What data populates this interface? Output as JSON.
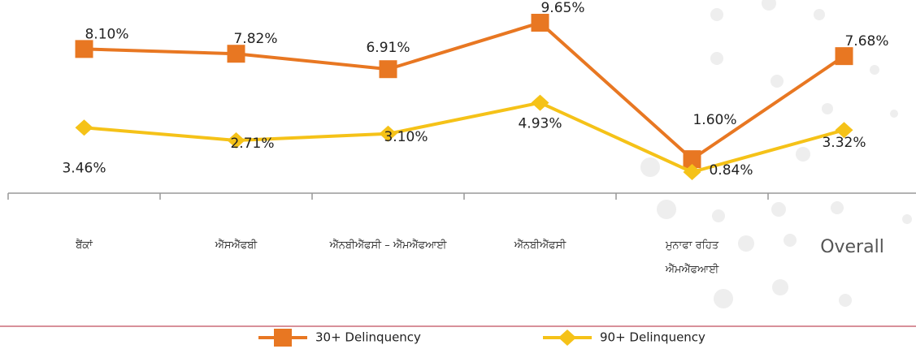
{
  "chart_data": {
    "type": "line",
    "categories": [
      "ਬੈਂਕਾਂ",
      "ਐੱਸਐੱਫਬੀ",
      "ਐੱਨਬੀਐੱਫਸੀ – ਐੱਮਐੱਫਆਈ",
      "ਐੱਨਬੀਐੱਫਸੀ",
      "ਮੁਨਾਫਾ ਰਹਿਤ ਐੱਮਐੱਫਆਈ",
      "Overall"
    ],
    "series": [
      {
        "name": "30+ Delinquency",
        "color": "#E87722",
        "marker": "square",
        "values": [
          8.1,
          7.82,
          6.91,
          9.65,
          1.6,
          7.68
        ],
        "value_labels": [
          "8.10%",
          "7.82%",
          "6.91%",
          "9.65%",
          "1.60%",
          "7.68%"
        ]
      },
      {
        "name": "90+ Delinquency",
        "color": "#F5C218",
        "marker": "diamond",
        "values": [
          3.46,
          2.71,
          3.1,
          4.93,
          0.84,
          3.32
        ],
        "value_labels": [
          "3.46%",
          "2.71%",
          "3.10%",
          "4.93%",
          "0.84%",
          "3.32%"
        ]
      }
    ]
  }
}
